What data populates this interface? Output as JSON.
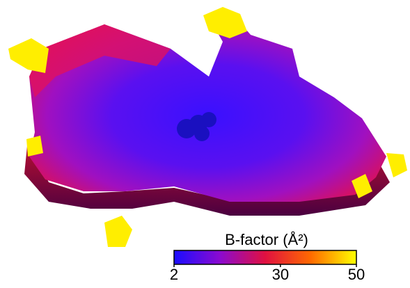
{
  "colorbar": {
    "title": "B-factor (Å²)",
    "lim": [
      2,
      50
    ],
    "ticks": [
      2,
      30,
      50
    ],
    "colors": [
      "#1a0dff",
      "#8a0ad0",
      "#e01040",
      "#ff6a00",
      "#ffff00"
    ]
  }
}
